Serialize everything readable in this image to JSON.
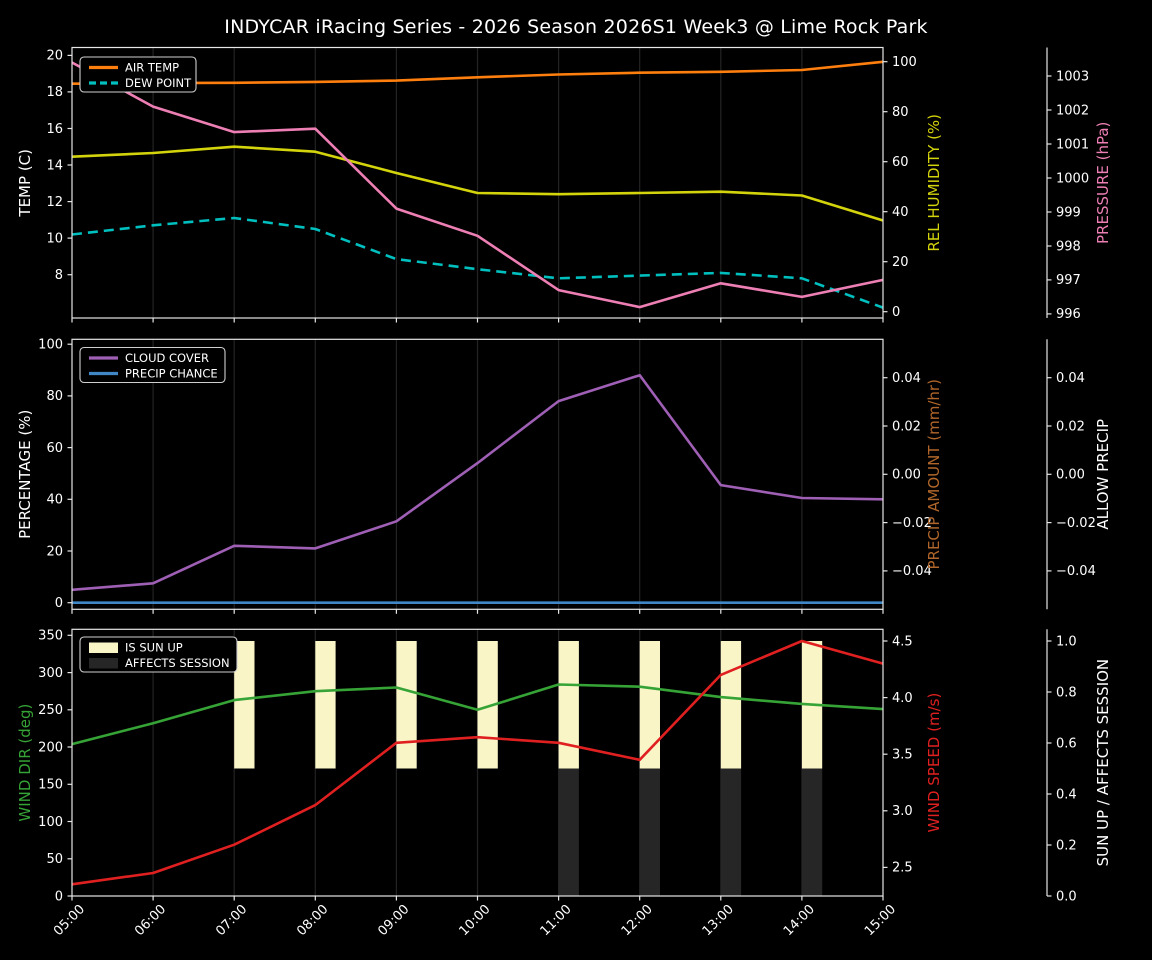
{
  "title": "INDYCAR iRacing Series - 2026 Season 2026S1 Week3 @ Lime Rock Park",
  "style": {
    "background": "#000000",
    "text": "#ffffff",
    "spine": "#e6e6e6",
    "grid": "#232323",
    "legend_border": "#cfcfcf"
  },
  "x_axis": {
    "hours": [
      5,
      6,
      7,
      8,
      9,
      10,
      11,
      12,
      13,
      14,
      15
    ],
    "labels": [
      "05:00",
      "06:00",
      "07:00",
      "08:00",
      "09:00",
      "10:00",
      "11:00",
      "12:00",
      "13:00",
      "14:00",
      "15:00"
    ]
  },
  "chart_data": [
    {
      "name": "temperature-humidity-pressure",
      "type": "line",
      "axes": [
        {
          "id": "temp",
          "side": "left",
          "label": "TEMP (C)",
          "color": "#ffffff",
          "range": [
            5.63,
            20.43
          ],
          "ticks": [
            8,
            10,
            12,
            14,
            16,
            18,
            20
          ],
          "tick_labels": [
            "8",
            "10",
            "12",
            "14",
            "16",
            "18",
            "20"
          ]
        },
        {
          "id": "humidity",
          "side": "right1",
          "label": "REL HUMIDITY (%)",
          "color": "#d4d40c",
          "range": [
            -2.52,
            105.7
          ],
          "ticks": [
            0,
            20,
            40,
            60,
            80,
            100
          ],
          "tick_labels": [
            "0",
            "20",
            "40",
            "60",
            "80",
            "100"
          ]
        },
        {
          "id": "pressure",
          "side": "right2",
          "label": "PRESSURE (hPa)",
          "color": "#ee7fb5",
          "range": [
            995.88,
            1003.84
          ],
          "ticks": [
            996,
            997,
            998,
            999,
            1000,
            1001,
            1002,
            1003
          ],
          "tick_labels": [
            "996",
            "997",
            "998",
            "999",
            "1000",
            "1001",
            "1002",
            "1003"
          ]
        }
      ],
      "series": [
        {
          "name": "AIR TEMP",
          "axis": "temp",
          "color": "#ff7f0e",
          "style": "solid",
          "values": [
            18.45,
            18.48,
            18.5,
            18.55,
            18.62,
            18.8,
            18.95,
            19.05,
            19.1,
            19.2,
            19.65
          ]
        },
        {
          "name": "DEW POINT",
          "axis": "temp",
          "color": "#00bfbf",
          "style": "dashed",
          "values": [
            10.2,
            10.7,
            11.1,
            10.5,
            8.85,
            8.3,
            7.8,
            7.95,
            8.1,
            7.8,
            6.2
          ]
        },
        {
          "name": "REL HUMIDITY",
          "axis": "humidity",
          "color": "#d4d40c",
          "style": "solid",
          "values": [
            62,
            63.5,
            66,
            64,
            55.5,
            47.5,
            47,
            47.5,
            48,
            46.5,
            36.5
          ]
        },
        {
          "name": "PRESSURE",
          "axis": "pressure",
          "color": "#ee7fb5",
          "style": "solid",
          "values": [
            1003.4,
            1002.1,
            1001.35,
            1001.45,
            999.1,
            998.3,
            996.7,
            996.2,
            996.9,
            996.5,
            997.0
          ]
        }
      ],
      "legend": [
        {
          "label": "AIR TEMP",
          "color": "#ff7f0e",
          "swatch": "line"
        },
        {
          "label": "DEW POINT",
          "color": "#00bfbf",
          "swatch": "dashed-line"
        }
      ]
    },
    {
      "name": "cloud-precip",
      "type": "line",
      "axes": [
        {
          "id": "pct",
          "side": "left",
          "label": "PERCENTAGE (%)",
          "color": "#ffffff",
          "range": [
            -2.55,
            101.9
          ],
          "ticks": [
            0,
            20,
            40,
            60,
            80,
            100
          ],
          "tick_labels": [
            "0",
            "20",
            "40",
            "60",
            "80",
            "100"
          ]
        },
        {
          "id": "amount",
          "side": "right1",
          "label": "PRECIP AMOUNT (mm/hr)",
          "color": "#b0662a",
          "range": [
            -0.0559,
            0.0559
          ],
          "ticks": [
            -0.04,
            -0.02,
            0,
            0.02,
            0.04
          ],
          "tick_labels": [
            "−0.04",
            "−0.02",
            "0.00",
            "0.02",
            "0.04"
          ]
        },
        {
          "id": "allow",
          "side": "right2",
          "label": "ALLOW PRECIP",
          "color": "#ffffff",
          "range": [
            -0.0559,
            0.0559
          ],
          "ticks": [
            -0.04,
            -0.02,
            0,
            0.02,
            0.04
          ],
          "tick_labels": [
            "−0.04",
            "−0.02",
            "0.00",
            "0.02",
            "0.04"
          ]
        }
      ],
      "series": [
        {
          "name": "CLOUD COVER",
          "axis": "pct",
          "color": "#9e5fb5",
          "style": "solid",
          "values": [
            5,
            7.5,
            22,
            21,
            31.5,
            54,
            78,
            88,
            45.5,
            40.5,
            40
          ]
        },
        {
          "name": "PRECIP CHANCE",
          "axis": "pct",
          "color": "#3f87c5",
          "style": "solid",
          "values": [
            0,
            0,
            0,
            0,
            0,
            0,
            0,
            0,
            0,
            0,
            0
          ]
        }
      ],
      "legend": [
        {
          "label": "CLOUD COVER",
          "color": "#9e5fb5",
          "swatch": "line"
        },
        {
          "label": "PRECIP CHANCE",
          "color": "#3f87c5",
          "swatch": "line"
        }
      ]
    },
    {
      "name": "wind-sun",
      "type": "line-bar",
      "axes": [
        {
          "id": "dir",
          "side": "left",
          "label": "WIND DIR (deg)",
          "color": "#36a336",
          "range": [
            0,
            358.1
          ],
          "ticks": [
            0,
            50,
            100,
            150,
            200,
            250,
            300,
            350
          ],
          "tick_labels": [
            "0",
            "50",
            "100",
            "150",
            "200",
            "250",
            "300",
            "350"
          ]
        },
        {
          "id": "speed",
          "side": "right1",
          "label": "WIND SPEED (m/s)",
          "color": "#e02020",
          "range": [
            2.247,
            4.603
          ],
          "ticks": [
            2.5,
            3.0,
            3.5,
            4.0,
            4.5
          ],
          "tick_labels": [
            "2.5",
            "3.0",
            "3.5",
            "4.0",
            "4.5"
          ]
        },
        {
          "id": "sunup",
          "side": "right2",
          "label": "SUN UP / AFFECTS SESSION",
          "color": "#ffffff",
          "range": [
            0,
            1.046
          ],
          "ticks": [
            0,
            0.2,
            0.4,
            0.6,
            0.8,
            1.0
          ],
          "tick_labels": [
            "0.0",
            "0.2",
            "0.4",
            "0.6",
            "0.8",
            "1.0"
          ]
        }
      ],
      "bars": [
        {
          "name": "IS SUN UP",
          "axis": "sunup",
          "color": "#f9f5c7",
          "hours": [
            7,
            8,
            9,
            10,
            11,
            12,
            13,
            14
          ],
          "y0": 0.5,
          "y1": 1.0,
          "width_hours": 0.25
        },
        {
          "name": "AFFECTS SESSION",
          "axis": "sunup",
          "color": "#262626",
          "hours": [
            11,
            12,
            13,
            14
          ],
          "y0": 0.0,
          "y1": 0.5,
          "width_hours": 0.25
        }
      ],
      "series": [
        {
          "name": "WIND DIR",
          "axis": "dir",
          "color": "#36a336",
          "style": "solid",
          "values": [
            204,
            232,
            263,
            275,
            280,
            250,
            284,
            281,
            267,
            258,
            251
          ]
        },
        {
          "name": "WIND SPEED",
          "axis": "speed",
          "color": "#e02020",
          "style": "solid",
          "values": [
            2.35,
            2.45,
            2.7,
            3.05,
            3.6,
            3.65,
            3.6,
            3.45,
            4.2,
            4.5,
            4.3
          ]
        }
      ],
      "legend": [
        {
          "label": "IS SUN UP",
          "color": "#f9f5c7",
          "swatch": "patch"
        },
        {
          "label": "AFFECTS SESSION",
          "color": "#262626",
          "swatch": "patch"
        }
      ]
    }
  ]
}
